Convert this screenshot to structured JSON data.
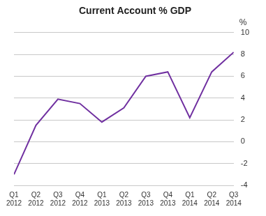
{
  "chart_data": {
    "type": "line",
    "title": "Current Account % GDP",
    "y_label": "%",
    "categories": [
      "Q1 2012",
      "Q2 2012",
      "Q3 2012",
      "Q4 2012",
      "Q1 2013",
      "Q2 2013",
      "Q3 2013",
      "Q4 2013",
      "Q1 2014",
      "Q2 2014",
      "Q3 2014"
    ],
    "values": [
      -3.0,
      1.5,
      3.9,
      3.5,
      1.8,
      3.1,
      6.0,
      6.4,
      2.2,
      6.4,
      8.2
    ],
    "color": "#7030a0",
    "ylim": [
      -4,
      10
    ],
    "yticks": [
      -4,
      -2,
      0,
      2,
      4,
      6,
      8,
      10
    ],
    "grid": true
  }
}
